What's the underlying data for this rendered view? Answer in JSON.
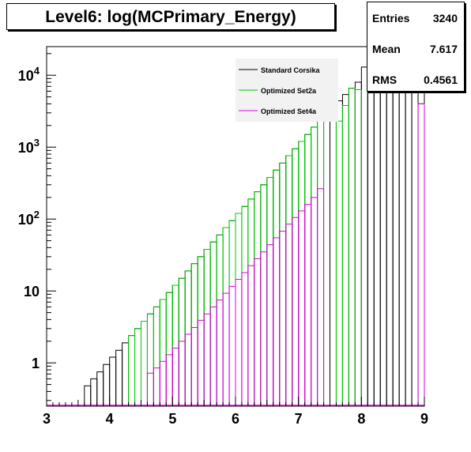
{
  "title": "Level6:  log(MCPrimary_Energy)",
  "stats": [
    {
      "label": "Entries",
      "value": "3240"
    },
    {
      "label": "Mean",
      "value": "7.617"
    },
    {
      "label": "RMS",
      "value": "0.4561"
    }
  ],
  "chart_data": {
    "type": "histogram",
    "title": "Level6:  log(MCPrimary_Energy)",
    "xlabel": "",
    "ylabel": "",
    "xlim": [
      3,
      9
    ],
    "ylim": [
      0.25,
      25000
    ],
    "yscale": "log",
    "grid": false,
    "legend_position": "top-right",
    "x_ticks": [
      "3",
      "4",
      "5",
      "6",
      "7",
      "8",
      "9"
    ],
    "y_ticks": [
      {
        "value": 1,
        "base": "1",
        "exp": ""
      },
      {
        "value": 10,
        "base": "10",
        "exp": ""
      },
      {
        "value": 100,
        "base": "10",
        "exp": "2"
      },
      {
        "value": 1000,
        "base": "10",
        "exp": "3"
      },
      {
        "value": 10000,
        "base": "10",
        "exp": "4"
      }
    ],
    "bin_width": 0.1,
    "series": [
      {
        "name": "Standard Corsika",
        "color": "#000000",
        "bins": [
          {
            "x": 3.6,
            "y": 0.48
          },
          {
            "x": 3.7,
            "y": 0.6
          },
          {
            "x": 3.8,
            "y": 0.75
          },
          {
            "x": 3.9,
            "y": 0.95
          },
          {
            "x": 4.0,
            "y": 1.2
          },
          {
            "x": 4.1,
            "y": 1.5
          },
          {
            "x": 4.2,
            "y": 1.9
          },
          {
            "x": 4.3,
            "y": 2.4
          },
          {
            "x": 4.4,
            "y": 3.0
          },
          {
            "x": 4.5,
            "y": 3.8
          },
          {
            "x": 4.6,
            "y": 4.8
          },
          {
            "x": 4.7,
            "y": 6.0
          },
          {
            "x": 4.8,
            "y": 7.6
          },
          {
            "x": 4.9,
            "y": 9.5
          },
          {
            "x": 5.0,
            "y": 12
          },
          {
            "x": 5.1,
            "y": 15
          },
          {
            "x": 5.2,
            "y": 19
          },
          {
            "x": 5.3,
            "y": 24
          },
          {
            "x": 5.4,
            "y": 30
          },
          {
            "x": 5.5,
            "y": 38
          },
          {
            "x": 5.6,
            "y": 48
          },
          {
            "x": 5.7,
            "y": 60
          },
          {
            "x": 5.8,
            "y": 76
          },
          {
            "x": 5.9,
            "y": 95
          },
          {
            "x": 6.0,
            "y": 120
          },
          {
            "x": 6.1,
            "y": 150
          },
          {
            "x": 6.2,
            "y": 190
          },
          {
            "x": 6.3,
            "y": 240
          },
          {
            "x": 6.4,
            "y": 300
          },
          {
            "x": 6.5,
            "y": 380
          },
          {
            "x": 6.6,
            "y": 480
          },
          {
            "x": 6.7,
            "y": 600
          },
          {
            "x": 6.8,
            "y": 760
          },
          {
            "x": 6.9,
            "y": 950
          },
          {
            "x": 7.0,
            "y": 1200
          },
          {
            "x": 7.1,
            "y": 1500
          },
          {
            "x": 7.2,
            "y": 1900
          },
          {
            "x": 7.3,
            "y": 2400
          },
          {
            "x": 7.4,
            "y": 2900
          },
          {
            "x": 7.5,
            "y": 3600
          },
          {
            "x": 7.6,
            "y": 4400
          },
          {
            "x": 7.7,
            "y": 5400
          },
          {
            "x": 7.8,
            "y": 6600
          },
          {
            "x": 7.9,
            "y": 8000
          },
          {
            "x": 8.0,
            "y": 13000
          },
          {
            "x": 8.1,
            "y": 17000
          },
          {
            "x": 8.2,
            "y": 17000
          },
          {
            "x": 8.3,
            "y": 17000
          },
          {
            "x": 8.4,
            "y": 17000
          },
          {
            "x": 8.5,
            "y": 17000
          },
          {
            "x": 8.6,
            "y": 17000
          },
          {
            "x": 8.7,
            "y": 17000
          },
          {
            "x": 8.8,
            "y": 17000
          },
          {
            "x": 8.9,
            "y": 4000
          }
        ]
      },
      {
        "name": "Optimized Set2a",
        "color": "#00cc00",
        "bins": [
          {
            "x": 4.3,
            "y": 2.4
          },
          {
            "x": 4.4,
            "y": 3.0
          },
          {
            "x": 4.5,
            "y": 3.8
          },
          {
            "x": 4.6,
            "y": 4.8
          },
          {
            "x": 4.7,
            "y": 6.0
          },
          {
            "x": 4.8,
            "y": 7.6
          },
          {
            "x": 4.9,
            "y": 9.5
          },
          {
            "x": 5.0,
            "y": 12
          },
          {
            "x": 5.1,
            "y": 15
          },
          {
            "x": 5.2,
            "y": 19
          },
          {
            "x": 5.3,
            "y": 24
          },
          {
            "x": 5.4,
            "y": 30
          },
          {
            "x": 5.5,
            "y": 38
          },
          {
            "x": 5.6,
            "y": 48
          },
          {
            "x": 5.7,
            "y": 60
          },
          {
            "x": 5.8,
            "y": 76
          },
          {
            "x": 5.9,
            "y": 95
          },
          {
            "x": 6.0,
            "y": 120
          },
          {
            "x": 6.1,
            "y": 150
          },
          {
            "x": 6.2,
            "y": 190
          },
          {
            "x": 6.3,
            "y": 240
          },
          {
            "x": 6.4,
            "y": 300
          },
          {
            "x": 6.5,
            "y": 380
          },
          {
            "x": 6.6,
            "y": 480
          },
          {
            "x": 6.7,
            "y": 600
          },
          {
            "x": 6.8,
            "y": 760
          },
          {
            "x": 6.9,
            "y": 950
          },
          {
            "x": 7.0,
            "y": 1200
          },
          {
            "x": 7.1,
            "y": 1500
          },
          {
            "x": 7.2,
            "y": 1900
          },
          {
            "x": 7.3,
            "y": 2400
          },
          {
            "x": 7.6,
            "y": 2300
          },
          {
            "x": 7.7,
            "y": 3800
          },
          {
            "x": 7.8,
            "y": 6600
          },
          {
            "x": 7.9,
            "y": 6300
          }
        ]
      },
      {
        "name": "Optimized Set4a",
        "color": "#dd00dd",
        "bins": [
          {
            "x": 4.6,
            "y": 0.72
          },
          {
            "x": 4.7,
            "y": 0.85
          },
          {
            "x": 4.8,
            "y": 1.05
          },
          {
            "x": 4.9,
            "y": 1.3
          },
          {
            "x": 5.0,
            "y": 1.6
          },
          {
            "x": 5.1,
            "y": 2.0
          },
          {
            "x": 5.2,
            "y": 2.5
          },
          {
            "x": 5.3,
            "y": 3.1
          },
          {
            "x": 5.4,
            "y": 3.9
          },
          {
            "x": 5.5,
            "y": 4.8
          },
          {
            "x": 5.6,
            "y": 6.0
          },
          {
            "x": 5.7,
            "y": 7.5
          },
          {
            "x": 5.8,
            "y": 9.3
          },
          {
            "x": 5.9,
            "y": 11.6
          },
          {
            "x": 6.0,
            "y": 14.5
          },
          {
            "x": 6.1,
            "y": 18
          },
          {
            "x": 6.2,
            "y": 22.5
          },
          {
            "x": 6.3,
            "y": 28
          },
          {
            "x": 6.4,
            "y": 35
          },
          {
            "x": 6.5,
            "y": 44
          },
          {
            "x": 6.6,
            "y": 55
          },
          {
            "x": 6.7,
            "y": 68
          },
          {
            "x": 6.8,
            "y": 85
          },
          {
            "x": 6.9,
            "y": 105
          },
          {
            "x": 7.0,
            "y": 130
          },
          {
            "x": 7.1,
            "y": 160
          },
          {
            "x": 7.2,
            "y": 200
          },
          {
            "x": 7.3,
            "y": 265
          },
          {
            "x": 8.9,
            "y": 4000
          }
        ]
      }
    ]
  }
}
